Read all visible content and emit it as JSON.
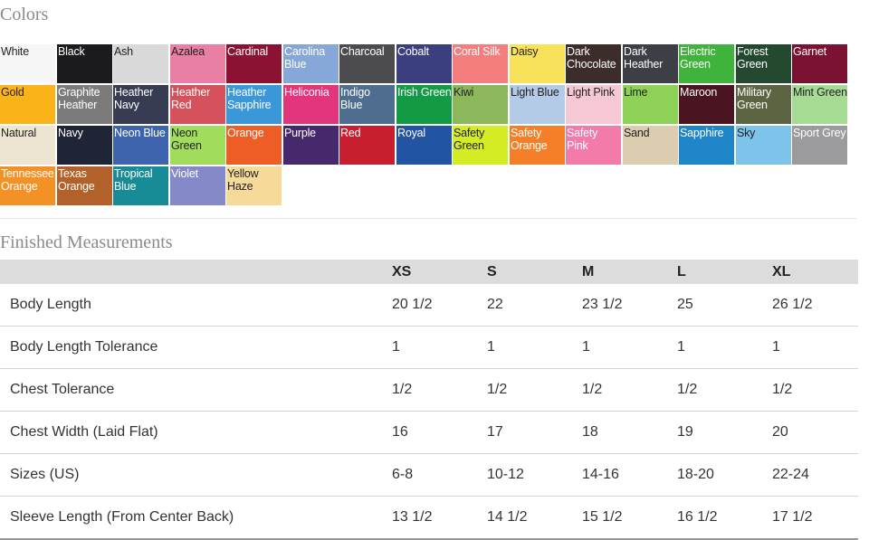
{
  "colors_title": "Colors",
  "swatches": [
    {
      "label": "White",
      "bg": "#f6f6f6",
      "fg": "#222222"
    },
    {
      "label": "Black",
      "bg": "#1b1b1d",
      "fg": "#ffffff"
    },
    {
      "label": "Ash",
      "bg": "#d9d9d9",
      "fg": "#222222"
    },
    {
      "label": "Azalea",
      "bg": "#e97fa4",
      "fg": "#222222"
    },
    {
      "label": "Cardinal",
      "bg": "#8b1233",
      "fg": "#ffffff"
    },
    {
      "label": "Carolina Blue",
      "bg": "#86a7d8",
      "fg": "#ffffff"
    },
    {
      "label": "Charcoal",
      "bg": "#4c4b4f",
      "fg": "#ffffff"
    },
    {
      "label": "Cobalt",
      "bg": "#3c3f7f",
      "fg": "#ffffff"
    },
    {
      "label": "Coral Silk",
      "bg": "#f37e7d",
      "fg": "#ffffff"
    },
    {
      "label": "Daisy",
      "bg": "#f7e25a",
      "fg": "#222222"
    },
    {
      "label": "Dark Chocolate",
      "bg": "#3d2d2a",
      "fg": "#ffffff"
    },
    {
      "label": "Dark Heather",
      "bg": "#3e3f46",
      "fg": "#ffffff"
    },
    {
      "label": "Electric Green",
      "bg": "#3fb33c",
      "fg": "#ffffff"
    },
    {
      "label": "Forest Green",
      "bg": "#234a2f",
      "fg": "#ffffff"
    },
    {
      "label": "Garnet",
      "bg": "#7b1231",
      "fg": "#ffffff"
    },
    {
      "label": "Gold",
      "bg": "#fbb31a",
      "fg": "#222222"
    },
    {
      "label": "Graphite Heather",
      "bg": "#7b7b7b",
      "fg": "#ffffff"
    },
    {
      "label": "Heather Navy",
      "bg": "#383c52",
      "fg": "#ffffff"
    },
    {
      "label": "Heather Red",
      "bg": "#d5525c",
      "fg": "#ffffff"
    },
    {
      "label": "Heather Sapphire",
      "bg": "#3b98d8",
      "fg": "#ffffff"
    },
    {
      "label": "Heliconia",
      "bg": "#e3357e",
      "fg": "#ffffff"
    },
    {
      "label": "Indigo Blue",
      "bg": "#4f6d8f",
      "fg": "#ffffff"
    },
    {
      "label": "Irish Green",
      "bg": "#139a45",
      "fg": "#ffffff"
    },
    {
      "label": "Kiwi",
      "bg": "#8db75b",
      "fg": "#222222"
    },
    {
      "label": "Light Blue",
      "bg": "#b4cbe7",
      "fg": "#222222"
    },
    {
      "label": "Light Pink",
      "bg": "#f6c8d5",
      "fg": "#222222"
    },
    {
      "label": "Lime",
      "bg": "#8ed157",
      "fg": "#222222"
    },
    {
      "label": "Maroon",
      "bg": "#4a1520",
      "fg": "#ffffff"
    },
    {
      "label": "Military Green",
      "bg": "#5c6542",
      "fg": "#ffffff"
    },
    {
      "label": "Mint Green",
      "bg": "#a6db94",
      "fg": "#222222"
    },
    {
      "label": "Natural",
      "bg": "#ede4d2",
      "fg": "#222222"
    },
    {
      "label": "Navy",
      "bg": "#202437",
      "fg": "#ffffff"
    },
    {
      "label": "Neon Blue",
      "bg": "#3e64ad",
      "fg": "#ffffff"
    },
    {
      "label": "Neon Green",
      "bg": "#a2dc5c",
      "fg": "#222222"
    },
    {
      "label": "Orange",
      "bg": "#ef5d26",
      "fg": "#ffffff"
    },
    {
      "label": "Purple",
      "bg": "#46296c",
      "fg": "#ffffff"
    },
    {
      "label": "Red",
      "bg": "#c71f2f",
      "fg": "#ffffff"
    },
    {
      "label": "Royal",
      "bg": "#2354a3",
      "fg": "#ffffff"
    },
    {
      "label": "Safety Green",
      "bg": "#d4ec24",
      "fg": "#222222"
    },
    {
      "label": "Safety Orange",
      "bg": "#f57f28",
      "fg": "#ffffff"
    },
    {
      "label": "Safety Pink",
      "bg": "#f27ba9",
      "fg": "#ffffff"
    },
    {
      "label": "Sand",
      "bg": "#dcccb0",
      "fg": "#222222"
    },
    {
      "label": "Sapphire",
      "bg": "#1d85c8",
      "fg": "#ffffff"
    },
    {
      "label": "Sky",
      "bg": "#7ec4ea",
      "fg": "#222222"
    },
    {
      "label": "Sport Grey",
      "bg": "#9b9b9e",
      "fg": "#ffffff"
    },
    {
      "label": "Tennessee Orange",
      "bg": "#f29226",
      "fg": "#ffffff"
    },
    {
      "label": "Texas Orange",
      "bg": "#b2612a",
      "fg": "#ffffff"
    },
    {
      "label": "Tropical Blue",
      "bg": "#188c96",
      "fg": "#ffffff"
    },
    {
      "label": "Violet",
      "bg": "#8589c8",
      "fg": "#ffffff"
    },
    {
      "label": "Yellow Haze",
      "bg": "#f6da9a",
      "fg": "#222222"
    }
  ],
  "measurements_title": "Finished Measurements",
  "measurements": {
    "sizes": [
      "XS",
      "S",
      "M",
      "L",
      "XL"
    ],
    "rows": [
      {
        "label": "Body Length",
        "values": [
          "20 1/2",
          "22",
          "23 1/2",
          "25",
          "26 1/2"
        ]
      },
      {
        "label": "Body Length Tolerance",
        "values": [
          "1",
          "1",
          "1",
          "1",
          "1"
        ]
      },
      {
        "label": "Chest Tolerance",
        "values": [
          "1/2",
          "1/2",
          "1/2",
          "1/2",
          "1/2"
        ]
      },
      {
        "label": "Chest Width (Laid Flat)",
        "values": [
          "16",
          "17",
          "18",
          "19",
          "20"
        ]
      },
      {
        "label": "Sizes (US)",
        "values": [
          "6-8",
          "10-12",
          "14-16",
          "18-20",
          "22-24"
        ]
      },
      {
        "label": "Sleeve Length (From Center Back)",
        "values": [
          "13 1/2",
          "14 1/2",
          "15 1/2",
          "16 1/2",
          "17 1/2"
        ]
      }
    ]
  }
}
